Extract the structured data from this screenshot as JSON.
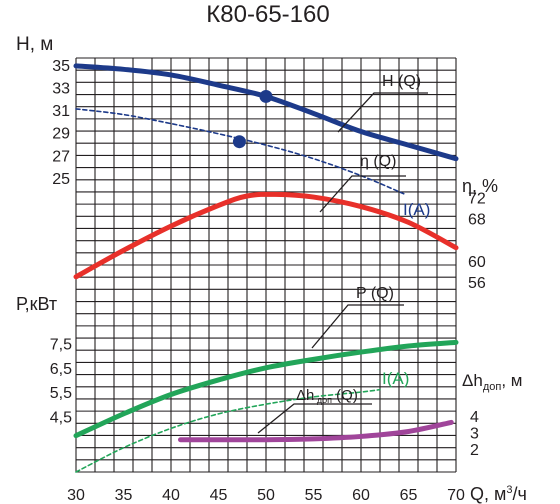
{
  "chart_data": {
    "type": "line",
    "title": "К80-65-160",
    "x_axis": {
      "label": "Q, м³/ч",
      "label_main": "Q, м",
      "label_sup": "3",
      "label_tail": "/ч",
      "range": [
        30,
        70
      ],
      "ticks": [
        "30",
        "35",
        "40",
        "45",
        "50",
        "55",
        "60",
        "65",
        "70"
      ]
    },
    "panels": {
      "head": {
        "label": "Н, м",
        "range": [
          23.4,
          35.6
        ],
        "ticks": [
          "35",
          "33",
          "31",
          "29",
          "27",
          "25"
        ]
      },
      "efficiency": {
        "label": "η, %",
        "range": [
          52.6,
          77.6
        ],
        "ticks": [
          "72",
          "68",
          "60",
          "56"
        ]
      },
      "power": {
        "label": "Р,кВт",
        "range": [
          2.2,
          9.3
        ],
        "ticks": [
          "7,5",
          "6,5",
          "5,5",
          "4,5"
        ]
      },
      "npsh": {
        "label": "Δh",
        "label_sub": "доп",
        "label_tail": ", м",
        "range": [
          0.6,
          5.8
        ],
        "ticks": [
          "4",
          "3",
          "2"
        ]
      }
    },
    "series": [
      {
        "name": "H (Q)",
        "panel": "head",
        "color": "#1d3a8a",
        "dash": false,
        "x": [
          30,
          35,
          40,
          45,
          50,
          55,
          60,
          65,
          70
        ],
        "y": [
          34.9,
          34.6,
          34.1,
          33.2,
          32.2,
          30.7,
          29.1,
          27.9,
          26.7
        ]
      },
      {
        "name": "(A)",
        "panel": "head",
        "color": "#1d3a8a",
        "dash": true,
        "x": [
          30,
          35,
          40,
          45,
          50,
          55,
          60,
          64.5
        ],
        "y": [
          31.1,
          30.6,
          29.8,
          28.9,
          27.9,
          26.7,
          25.2,
          23.6
        ]
      },
      {
        "name": "η (Q)",
        "panel": "efficiency",
        "color": "#e8302a",
        "dash": false,
        "x": [
          30,
          35,
          40,
          45,
          48,
          51,
          55,
          60,
          65,
          70
        ],
        "y": [
          57.0,
          62.0,
          66.6,
          70.5,
          72.3,
          72.6,
          72.1,
          70.3,
          67.3,
          62.5
        ]
      },
      {
        "name": "P (Q)",
        "panel": "power",
        "color": "#22a559",
        "dash": false,
        "x": [
          30,
          35,
          40,
          45,
          50,
          55,
          60,
          65,
          70
        ],
        "y": [
          3.7,
          4.6,
          5.4,
          6.0,
          6.5,
          6.85,
          7.15,
          7.4,
          7.55
        ]
      },
      {
        "name": "(A)",
        "panel": "power",
        "color": "#22a559",
        "dash": true,
        "x": [
          30,
          35,
          40,
          45,
          50,
          55,
          60,
          62
        ],
        "y": [
          2.2,
          3.2,
          4.0,
          4.6,
          5.0,
          5.3,
          5.5,
          5.6
        ]
      },
      {
        "name": "Δh доп (Q)",
        "name_main": "Δh",
        "name_sub": "доп",
        "name_tail": " (Q)",
        "panel": "npsh",
        "color": "#a0459a",
        "dash": false,
        "x": [
          41,
          45,
          50,
          55,
          60,
          65,
          69.5
        ],
        "y": [
          2.55,
          2.55,
          2.55,
          2.6,
          2.75,
          3.05,
          3.6
        ]
      }
    ],
    "markers": [
      {
        "panel": "head",
        "x": 50,
        "y": 32.2,
        "color": "#1d3a8a"
      },
      {
        "panel": "head",
        "x": 47.2,
        "y": 28.2,
        "color": "#1d3a8a"
      }
    ],
    "grid": true
  }
}
